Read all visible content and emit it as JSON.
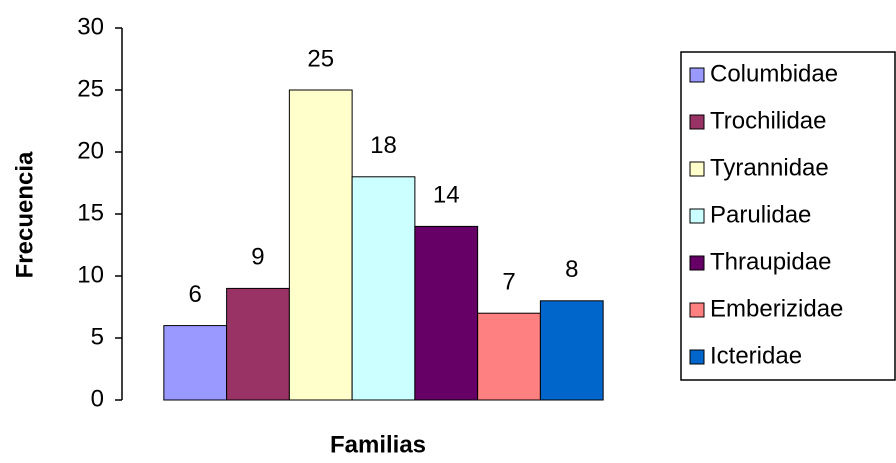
{
  "chart_data": {
    "type": "bar",
    "xlabel": "Familias",
    "ylabel": "Frecuencia",
    "categories": [
      null
    ],
    "series": [
      {
        "name": "Columbidae",
        "color": "#9999ff",
        "values": [
          6
        ]
      },
      {
        "name": "Trochilidae",
        "color": "#993366",
        "values": [
          9
        ]
      },
      {
        "name": "Tyrannidae",
        "color": "#ffffcc",
        "values": [
          25
        ]
      },
      {
        "name": "Parulidae",
        "color": "#ccffff",
        "values": [
          18
        ]
      },
      {
        "name": "Thraupidae",
        "color": "#660066",
        "values": [
          14
        ]
      },
      {
        "name": "Emberizidae",
        "color": "#ff8080",
        "values": [
          7
        ]
      },
      {
        "name": "Icteridae",
        "color": "#0066cc",
        "values": [
          8
        ]
      }
    ],
    "ylim": [
      0,
      30
    ],
    "yticks": [
      0,
      5,
      10,
      15,
      20,
      25,
      30
    ],
    "legend": "right"
  }
}
